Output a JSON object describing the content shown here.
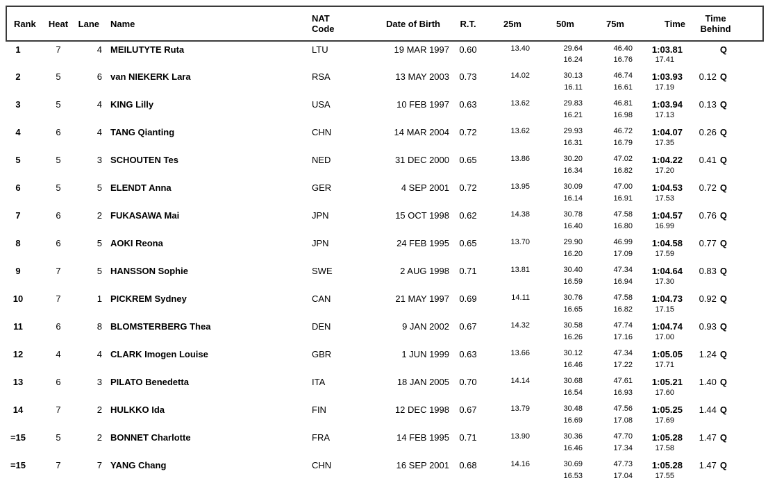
{
  "table": {
    "headers": {
      "rank": "Rank",
      "heat": "Heat",
      "lane": "Lane",
      "name": "Name",
      "nat_line1": "NAT",
      "nat_line2": "Code",
      "dob": "Date of Birth",
      "rt": "R.T.",
      "m25": "25m",
      "m50": "50m",
      "m75": "75m",
      "time": "Time",
      "behind_line1": "Time",
      "behind_line2": "Behind"
    },
    "rows": [
      {
        "rank": "1",
        "heat": "7",
        "lane": "4",
        "name": "MEILUTYTE Ruta",
        "nat": "LTU",
        "dob": "19 MAR 1997",
        "rt": "0.60",
        "m25": "13.40",
        "m50": "29.64",
        "m75": "46.40",
        "time": "1:03.81",
        "behind": "",
        "q": "Q",
        "s50": "16.24",
        "s75": "16.76",
        "stime": "17.41"
      },
      {
        "rank": "2",
        "heat": "5",
        "lane": "6",
        "name": "van NIEKERK Lara",
        "nat": "RSA",
        "dob": "13 MAY 2003",
        "rt": "0.73",
        "m25": "14.02",
        "m50": "30.13",
        "m75": "46.74",
        "time": "1:03.93",
        "behind": "0.12",
        "q": "Q",
        "s50": "16.11",
        "s75": "16.61",
        "stime": "17.19"
      },
      {
        "rank": "3",
        "heat": "5",
        "lane": "4",
        "name": "KING Lilly",
        "nat": "USA",
        "dob": "10 FEB 1997",
        "rt": "0.63",
        "m25": "13.62",
        "m50": "29.83",
        "m75": "46.81",
        "time": "1:03.94",
        "behind": "0.13",
        "q": "Q",
        "s50": "16.21",
        "s75": "16.98",
        "stime": "17.13"
      },
      {
        "rank": "4",
        "heat": "6",
        "lane": "4",
        "name": "TANG Qianting",
        "nat": "CHN",
        "dob": "14 MAR 2004",
        "rt": "0.72",
        "m25": "13.62",
        "m50": "29.93",
        "m75": "46.72",
        "time": "1:04.07",
        "behind": "0.26",
        "q": "Q",
        "s50": "16.31",
        "s75": "16.79",
        "stime": "17.35"
      },
      {
        "rank": "5",
        "heat": "5",
        "lane": "3",
        "name": "SCHOUTEN Tes",
        "nat": "NED",
        "dob": "31 DEC 2000",
        "rt": "0.65",
        "m25": "13.86",
        "m50": "30.20",
        "m75": "47.02",
        "time": "1:04.22",
        "behind": "0.41",
        "q": "Q",
        "s50": "16.34",
        "s75": "16.82",
        "stime": "17.20"
      },
      {
        "rank": "6",
        "heat": "5",
        "lane": "5",
        "name": "ELENDT Anna",
        "nat": "GER",
        "dob": "4 SEP 2001",
        "rt": "0.72",
        "m25": "13.95",
        "m50": "30.09",
        "m75": "47.00",
        "time": "1:04.53",
        "behind": "0.72",
        "q": "Q",
        "s50": "16.14",
        "s75": "16.91",
        "stime": "17.53"
      },
      {
        "rank": "7",
        "heat": "6",
        "lane": "2",
        "name": "FUKASAWA Mai",
        "nat": "JPN",
        "dob": "15 OCT 1998",
        "rt": "0.62",
        "m25": "14.38",
        "m50": "30.78",
        "m75": "47.58",
        "time": "1:04.57",
        "behind": "0.76",
        "q": "Q",
        "s50": "16.40",
        "s75": "16.80",
        "stime": "16.99"
      },
      {
        "rank": "8",
        "heat": "6",
        "lane": "5",
        "name": "AOKI Reona",
        "nat": "JPN",
        "dob": "24 FEB 1995",
        "rt": "0.65",
        "m25": "13.70",
        "m50": "29.90",
        "m75": "46.99",
        "time": "1:04.58",
        "behind": "0.77",
        "q": "Q",
        "s50": "16.20",
        "s75": "17.09",
        "stime": "17.59"
      },
      {
        "rank": "9",
        "heat": "7",
        "lane": "5",
        "name": "HANSSON Sophie",
        "nat": "SWE",
        "dob": "2 AUG 1998",
        "rt": "0.71",
        "m25": "13.81",
        "m50": "30.40",
        "m75": "47.34",
        "time": "1:04.64",
        "behind": "0.83",
        "q": "Q",
        "s50": "16.59",
        "s75": "16.94",
        "stime": "17.30"
      },
      {
        "rank": "10",
        "heat": "7",
        "lane": "1",
        "name": "PICKREM Sydney",
        "nat": "CAN",
        "dob": "21 MAY 1997",
        "rt": "0.69",
        "m25": "14.11",
        "m50": "30.76",
        "m75": "47.58",
        "time": "1:04.73",
        "behind": "0.92",
        "q": "Q",
        "s50": "16.65",
        "s75": "16.82",
        "stime": "17.15"
      },
      {
        "rank": "11",
        "heat": "6",
        "lane": "8",
        "name": "BLOMSTERBERG Thea",
        "nat": "DEN",
        "dob": "9 JAN 2002",
        "rt": "0.67",
        "m25": "14.32",
        "m50": "30.58",
        "m75": "47.74",
        "time": "1:04.74",
        "behind": "0.93",
        "q": "Q",
        "s50": "16.26",
        "s75": "17.16",
        "stime": "17.00"
      },
      {
        "rank": "12",
        "heat": "4",
        "lane": "4",
        "name": "CLARK Imogen Louise",
        "nat": "GBR",
        "dob": "1 JUN 1999",
        "rt": "0.63",
        "m25": "13.66",
        "m50": "30.12",
        "m75": "47.34",
        "time": "1:05.05",
        "behind": "1.24",
        "q": "Q",
        "s50": "16.46",
        "s75": "17.22",
        "stime": "17.71"
      },
      {
        "rank": "13",
        "heat": "6",
        "lane": "3",
        "name": "PILATO Benedetta",
        "nat": "ITA",
        "dob": "18 JAN 2005",
        "rt": "0.70",
        "m25": "14.14",
        "m50": "30.68",
        "m75": "47.61",
        "time": "1:05.21",
        "behind": "1.40",
        "q": "Q",
        "s50": "16.54",
        "s75": "16.93",
        "stime": "17.60"
      },
      {
        "rank": "14",
        "heat": "7",
        "lane": "2",
        "name": "HULKKO Ida",
        "nat": "FIN",
        "dob": "12 DEC 1998",
        "rt": "0.67",
        "m25": "13.79",
        "m50": "30.48",
        "m75": "47.56",
        "time": "1:05.25",
        "behind": "1.44",
        "q": "Q",
        "s50": "16.69",
        "s75": "17.08",
        "stime": "17.69"
      },
      {
        "rank": "=15",
        "heat": "5",
        "lane": "2",
        "name": "BONNET Charlotte",
        "nat": "FRA",
        "dob": "14 FEB 1995",
        "rt": "0.71",
        "m25": "13.90",
        "m50": "30.36",
        "m75": "47.70",
        "time": "1:05.28",
        "behind": "1.47",
        "q": "Q",
        "s50": "16.46",
        "s75": "17.34",
        "stime": "17.58"
      },
      {
        "rank": "=15",
        "heat": "7",
        "lane": "7",
        "name": "YANG Chang",
        "nat": "CHN",
        "dob": "16 SEP 2001",
        "rt": "0.68",
        "m25": "14.16",
        "m50": "30.69",
        "m75": "47.73",
        "time": "1:05.28",
        "behind": "1.47",
        "q": "Q",
        "s50": "16.53",
        "s75": "17.04",
        "stime": "17.55"
      }
    ]
  }
}
